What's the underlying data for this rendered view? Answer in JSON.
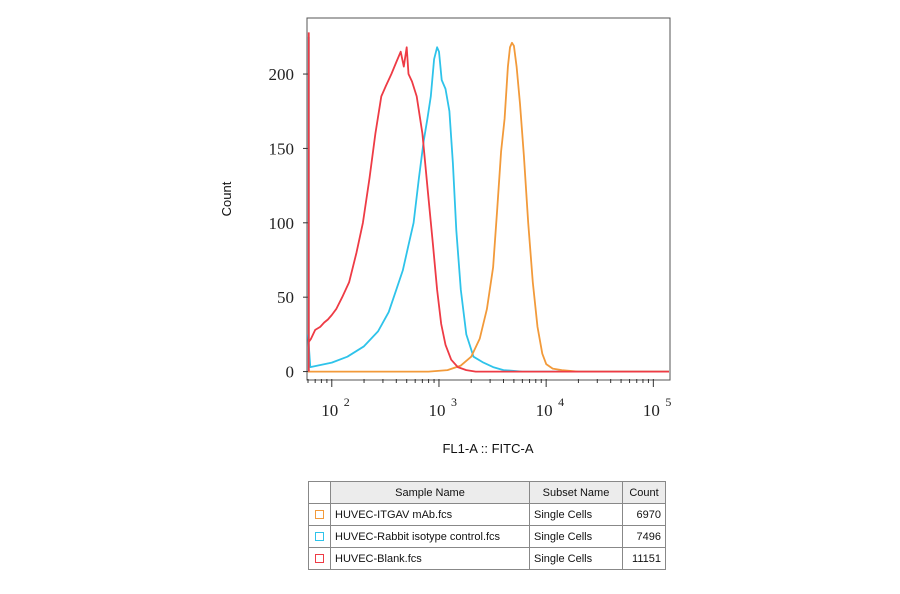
{
  "chart_data": {
    "type": "line",
    "xlabel": "FL1-A :: FITC-A",
    "ylabel": "Count",
    "x_scale": "log",
    "xlim": [
      60,
      140000
    ],
    "ylim": [
      -5,
      237
    ],
    "x_ticks": [
      {
        "value": 100,
        "base": "10",
        "exp": "2"
      },
      {
        "value": 1000,
        "base": "10",
        "exp": "3"
      },
      {
        "value": 10000,
        "base": "10",
        "exp": "4"
      },
      {
        "value": 100000,
        "base": "10",
        "exp": "5"
      }
    ],
    "y_ticks": [
      0,
      50,
      100,
      150,
      200
    ],
    "grid": false,
    "series": [
      {
        "name": "HUVEC-ITGAV mAb.fcs",
        "color": "#f29a3a",
        "x": [
          60,
          800,
          1200,
          1600,
          2000,
          2400,
          2800,
          3200,
          3500,
          3800,
          4100,
          4400,
          4600,
          4800,
          5000,
          5300,
          5700,
          6200,
          6800,
          7500,
          8300,
          9200,
          10000,
          11500,
          14000,
          20000,
          40000,
          140000
        ],
        "y": [
          0,
          0,
          1,
          4,
          10,
          22,
          42,
          70,
          110,
          148,
          170,
          205,
          218,
          221,
          219,
          205,
          180,
          145,
          100,
          60,
          30,
          12,
          5,
          2,
          1,
          0,
          0,
          0
        ]
      },
      {
        "name": "HUVEC-Rabbit isotype control.fcs",
        "color": "#2ec3ea",
        "x": [
          60,
          63,
          100,
          140,
          200,
          270,
          340,
          400,
          460,
          520,
          580,
          650,
          720,
          780,
          840,
          900,
          960,
          1000,
          1060,
          1150,
          1250,
          1350,
          1450,
          1600,
          1800,
          2100,
          2600,
          3200,
          4000,
          6000,
          10000,
          140000
        ],
        "y": [
          25,
          3,
          6,
          10,
          17,
          27,
          40,
          55,
          68,
          85,
          100,
          130,
          155,
          170,
          185,
          210,
          218,
          215,
          196,
          190,
          175,
          140,
          95,
          55,
          25,
          10,
          6,
          3,
          1,
          0,
          0,
          0
        ],
        "spike": {
          "x": 61,
          "top": 225
        }
      },
      {
        "name": "HUVEC-Blank.fcs",
        "color": "#ee3b45",
        "x": [
          61,
          64,
          70,
          78,
          85,
          92,
          100,
          110,
          125,
          145,
          170,
          195,
          225,
          255,
          290,
          320,
          360,
          400,
          440,
          470,
          500,
          520,
          560,
          620,
          700,
          790,
          880,
          960,
          1050,
          1150,
          1300,
          1500,
          1800,
          2200,
          3000,
          140000
        ],
        "y": [
          20,
          22,
          28,
          30,
          33,
          35,
          38,
          42,
          50,
          60,
          80,
          100,
          130,
          160,
          185,
          192,
          200,
          208,
          215,
          205,
          218,
          200,
          195,
          185,
          160,
          120,
          85,
          55,
          32,
          18,
          8,
          3,
          1,
          0,
          0,
          0
        ],
        "spike": {
          "x": 61,
          "top": 228
        }
      }
    ]
  },
  "legend_table": {
    "headers": {
      "sample": "Sample Name",
      "subset": "Subset Name",
      "count": "Count"
    },
    "rows": [
      {
        "color": "#f29a3a",
        "sample": "HUVEC-ITGAV mAb.fcs",
        "subset": "Single Cells",
        "count": "6970"
      },
      {
        "color": "#2ec3ea",
        "sample": "HUVEC-Rabbit isotype control.fcs",
        "subset": "Single Cells",
        "count": "7496"
      },
      {
        "color": "#ee3b45",
        "sample": "HUVEC-Blank.fcs",
        "subset": "Single Cells",
        "count": "11151"
      }
    ]
  }
}
